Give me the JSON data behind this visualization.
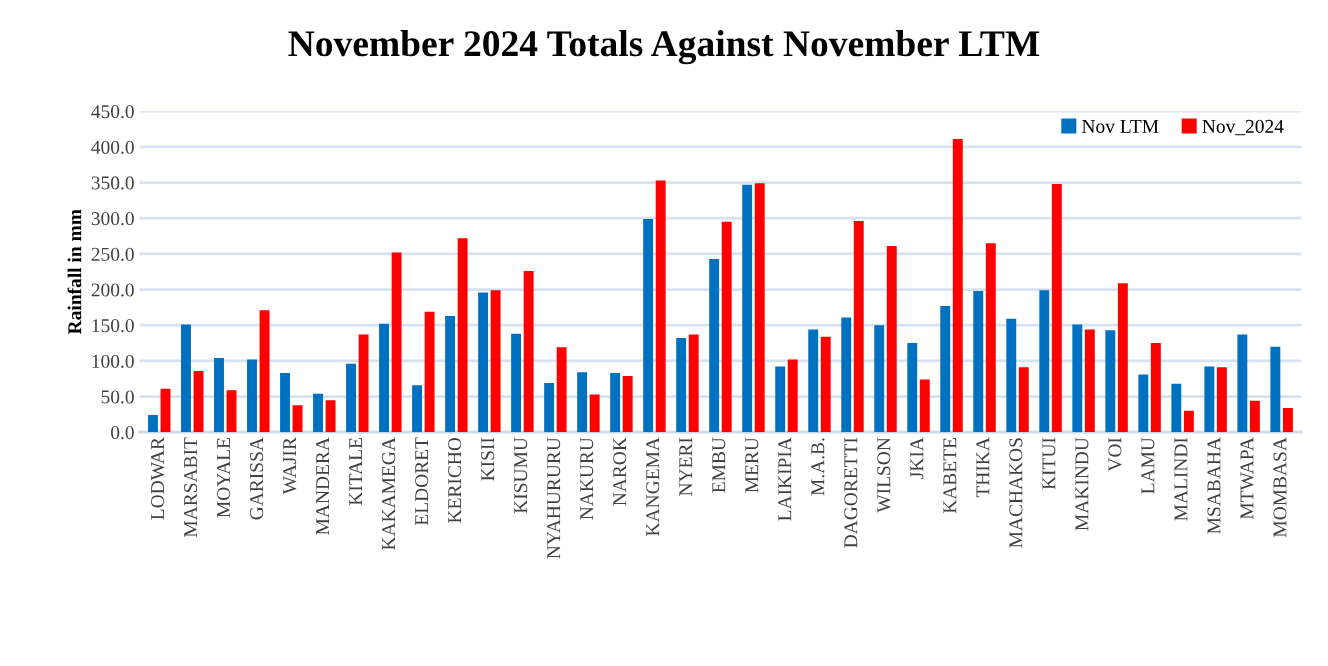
{
  "chart_data": {
    "type": "bar",
    "title": "November 2024 Totals Against November LTM",
    "ylabel": "Rainfall in mm",
    "categories": [
      "LODWAR",
      "MARSABIT",
      "MOYALE",
      "GARISSA",
      "WAJIR",
      "MANDERA",
      "KITALE",
      "KAKAMEGA",
      "ELDORET",
      "KERICHO",
      "KISII",
      "KISUMU",
      "NYAHURURU",
      "NAKURU",
      "NAROK",
      "KANGEMA",
      "NYERI",
      "EMBU",
      "MERU",
      "LAIKIPIA",
      "M.A.B.",
      "DAGORETTI",
      "WILSON",
      "JKIA",
      "KABETE",
      "THIKA",
      "MACHAKOS",
      "KITUI",
      "MAKINDU",
      "VOI",
      "LAMU",
      "MALINDI",
      "MSABAHA",
      "MTWAPA",
      "MOMBASA"
    ],
    "series": [
      {
        "name": "Nov LTM",
        "color": "#0070c0",
        "values": [
          24,
          151,
          104,
          102,
          83,
          54,
          96,
          152,
          66,
          163,
          196,
          138,
          69,
          84,
          83,
          299,
          132,
          243,
          347,
          92,
          144,
          161,
          150,
          125,
          177,
          198,
          159,
          199,
          151,
          143,
          81,
          68,
          92,
          137,
          120
        ]
      },
      {
        "name": "Nov_2024",
        "color": "#ff0000",
        "values": [
          61,
          86,
          59,
          171,
          38,
          45,
          137,
          252,
          169,
          272,
          199,
          226,
          119,
          53,
          79,
          353,
          137,
          295,
          349,
          102,
          134,
          296,
          261,
          74,
          411,
          265,
          91,
          348,
          144,
          209,
          125,
          30,
          91,
          44,
          34
        ]
      }
    ],
    "ylim": [
      0,
      450
    ],
    "yticks": [
      {
        "value": 0,
        "label": "0.0"
      },
      {
        "value": 50,
        "label": "50.0"
      },
      {
        "value": 100,
        "label": "100.0"
      },
      {
        "value": 150,
        "label": "150.0"
      },
      {
        "value": 200,
        "label": "200.0"
      },
      {
        "value": 250,
        "label": "250.0"
      },
      {
        "value": 300,
        "label": "300.0"
      },
      {
        "value": 350,
        "label": "350.0"
      },
      {
        "value": 400,
        "label": "400.0"
      },
      {
        "value": 450,
        "label": "450.0"
      }
    ],
    "grid": "y",
    "legend": "top right"
  }
}
